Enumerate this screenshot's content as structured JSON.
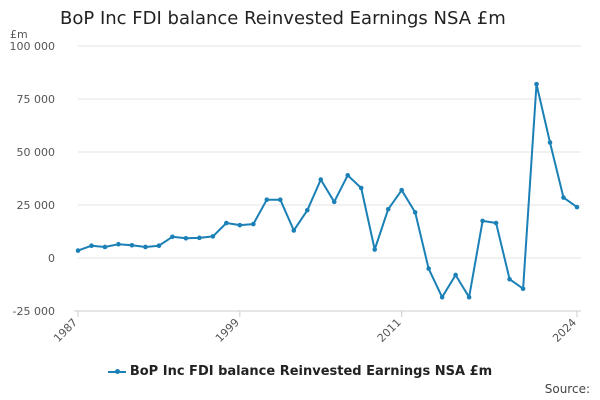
{
  "chart_data": {
    "type": "line",
    "title": "BoP Inc FDI balance Reinvested Earnings NSA £m",
    "ylabel": "£m",
    "xlabel": "",
    "ylim": [
      -25000,
      100000
    ],
    "yticks": [
      "100 000",
      "75 000",
      "50 000",
      "25 000",
      "0",
      "-25 000"
    ],
    "ytick_values": [
      100000,
      75000,
      50000,
      25000,
      0,
      -25000
    ],
    "xlim": [
      1987,
      2024
    ],
    "xticks": [
      "1987",
      "1999",
      "2011",
      "2024"
    ],
    "xtick_values": [
      1987,
      1999,
      2011,
      2024
    ],
    "grid": true,
    "legend_position": "bottom",
    "series": [
      {
        "name": "BoP Inc FDI balance Reinvested Earnings NSA £m",
        "color": "#1a80b6",
        "x": [
          1987,
          1988,
          1989,
          1990,
          1991,
          1992,
          1993,
          1994,
          1995,
          1996,
          1997,
          1998,
          1999,
          2000,
          2001,
          2002,
          2003,
          2004,
          2005,
          2006,
          2007,
          2008,
          2009,
          2010,
          2011,
          2012,
          2013,
          2014,
          2015,
          2016,
          2017,
          2018,
          2019,
          2020,
          2021,
          2022,
          2023,
          2024
        ],
        "values": [
          3500,
          5800,
          5200,
          6500,
          6000,
          5200,
          5800,
          10000,
          9300,
          9500,
          10200,
          16500,
          15500,
          16000,
          27500,
          27500,
          13000,
          22500,
          37000,
          26500,
          39000,
          33000,
          4000,
          23000,
          32000,
          21500,
          -5000,
          -18500,
          -8000,
          -18500,
          17500,
          16500,
          -10000,
          -14500,
          82000,
          54500,
          28500,
          24000
        ]
      }
    ],
    "source_label": "Source:"
  }
}
